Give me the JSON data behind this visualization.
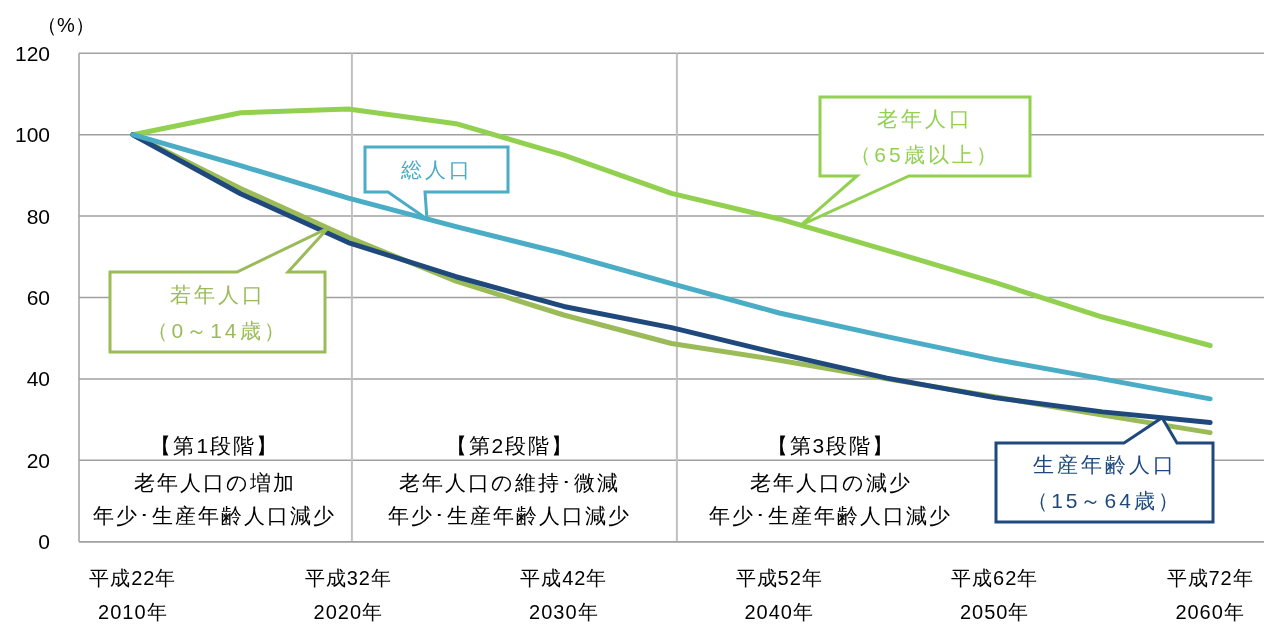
{
  "chart_data": {
    "type": "line",
    "ylabel": "（%）",
    "x": [
      "2010",
      "2015",
      "2020",
      "2025",
      "2030",
      "2035",
      "2040",
      "2045",
      "2050",
      "2055",
      "2060"
    ],
    "series": [
      {
        "name": "老年人口（65歳以上）",
        "color": "#92d050",
        "values": [
          100,
          105.4,
          106.3,
          102.7,
          95.0,
          85.6,
          79.3,
          71.6,
          63.7,
          55.2,
          48.2
        ]
      },
      {
        "name": "若年人口（0～14歳）",
        "color": "#9bbb59",
        "values": [
          100,
          86.8,
          74.8,
          64.0,
          55.7,
          48.7,
          44.6,
          40.0,
          35.6,
          31.1,
          26.8
        ]
      },
      {
        "name": "生産年齢人口（15～64歳）",
        "color": "#1f497d",
        "values": [
          100,
          85.5,
          73.5,
          65.1,
          57.8,
          52.6,
          46.2,
          40.2,
          35.4,
          31.9,
          29.3
        ]
      },
      {
        "name": "総人口",
        "color": "#4bacc6",
        "values": [
          100,
          92.4,
          84.4,
          77.4,
          70.8,
          63.4,
          56.2,
          50.4,
          44.8,
          40.0,
          35.1
        ]
      }
    ],
    "xlim": [
      "2007-07",
      "2062-07"
    ],
    "xticks": [
      {
        "value": "2010",
        "label": "平成22年\n2010年"
      },
      {
        "value": "2020",
        "label": "平成32年\n2020年"
      },
      {
        "value": "2030",
        "label": "平成42年\n2030年"
      },
      {
        "value": "2040",
        "label": "平成52年\n2040年"
      },
      {
        "value": "2050",
        "label": "平成62年\n2050年"
      },
      {
        "value": "2060",
        "label": "平成72年\n2060年"
      }
    ],
    "ylim": [
      0,
      120
    ],
    "yticks": [
      0,
      20,
      40,
      60,
      80,
      100,
      120
    ],
    "grid": "y",
    "ref_lines": [
      {
        "axis": "x",
        "value": "2020-03",
        "color": "#c0c0c0"
      },
      {
        "axis": "x",
        "value": "2035-04",
        "color": "#c0c0c0"
      }
    ],
    "annotations": [
      "【第1段階】",
      "老年人口の増加",
      "年少･生産年齢人口減少",
      "【第2段階】",
      "老年人口の維持･微減",
      "年少･生産年齢人口減少",
      "【第3段階】",
      "老年人口の減少",
      "年少･生産年齢人口減少"
    ]
  }
}
